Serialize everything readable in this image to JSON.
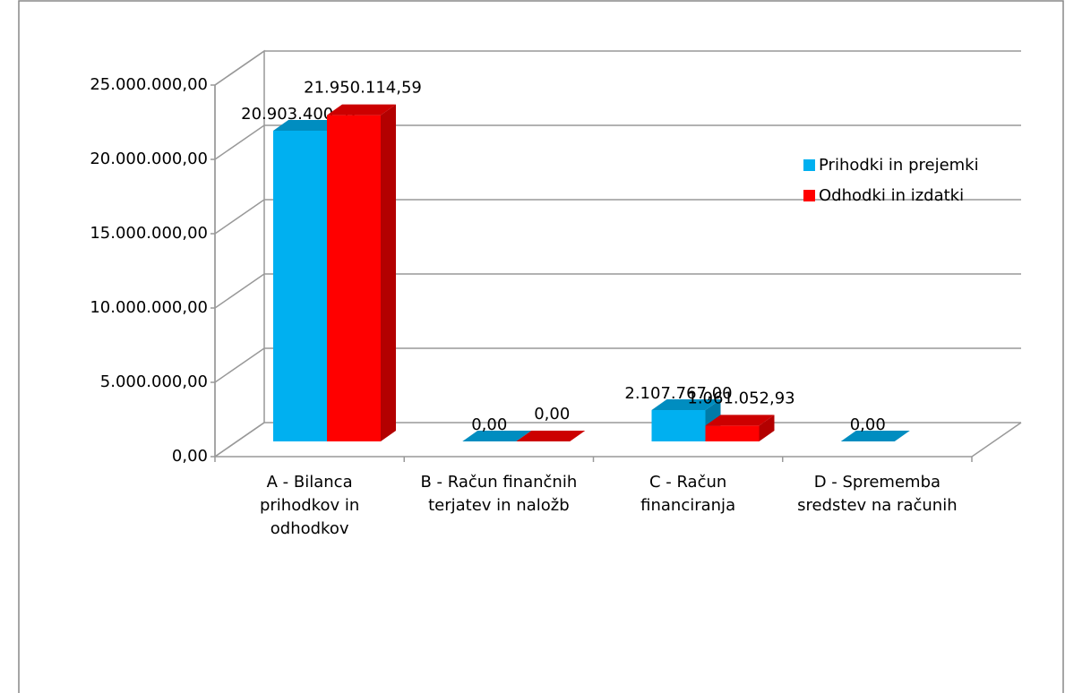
{
  "chart_data": {
    "type": "bar3d",
    "categories": [
      "A - Bilanca prihodkov in odhodkov",
      "B - Račun finančnih terjatev in naložb",
      "C - Račun financiranja",
      "D - Sprememba sredstev na računih"
    ],
    "series": [
      {
        "name": "Prihodki in prejemki",
        "color": "#00b0f0",
        "values": [
          20903400.52,
          0,
          2107767.0,
          0
        ],
        "value_labels": [
          "20.903.400,52",
          "0,00",
          "2.107.767,00",
          "0,00"
        ]
      },
      {
        "name": "Odhodki in izdatki",
        "color": "#ff0000",
        "values": [
          21950114.59,
          0,
          1061052.93,
          null
        ],
        "value_labels": [
          "21.950.114,59",
          "0,00",
          "1.061.052,93",
          null
        ]
      }
    ],
    "ylim": [
      0,
      25000000
    ],
    "yticks": [
      {
        "value": 0,
        "label": "0,00"
      },
      {
        "value": 5000000,
        "label": "5.000.000,00"
      },
      {
        "value": 10000000,
        "label": "10.000.000,00"
      },
      {
        "value": 15000000,
        "label": "15.000.000,00"
      },
      {
        "value": 20000000,
        "label": "20.000.000,00"
      },
      {
        "value": 25000000,
        "label": "25.000.000,00"
      }
    ],
    "grid": true,
    "legend": "right"
  }
}
